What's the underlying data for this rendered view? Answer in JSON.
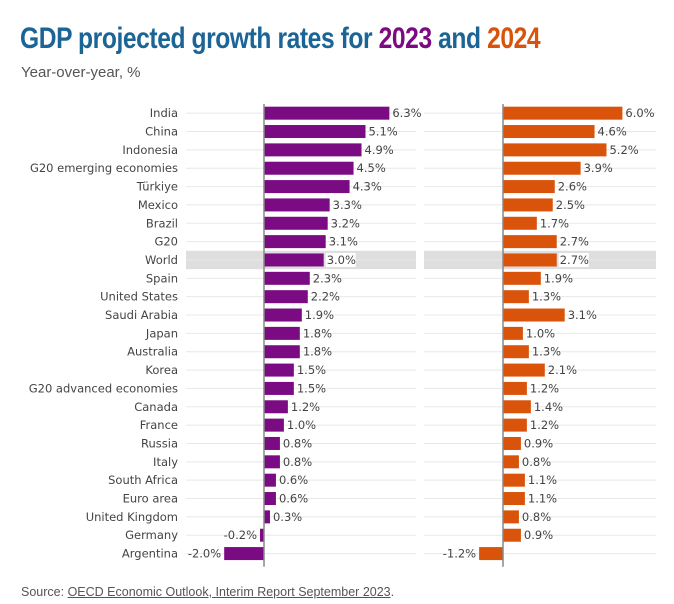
{
  "title": {
    "prefix": "GDP projected growth rates for ",
    "year1": "2023",
    "middle": " and ",
    "year2": "2024"
  },
  "subtitle": "Year-over-year, %",
  "source": {
    "prefix": "Source: ",
    "link_text": "OECD Economic Outlook, Interim Report September 2023",
    "suffix": "."
  },
  "colors": {
    "title": "#1a6496",
    "series_2023": "#7a0b82",
    "series_2024": "#d9530b",
    "highlight_row": "#dedede"
  },
  "chart_data": {
    "type": "bar",
    "orientation": "horizontal",
    "title": "GDP projected growth rates for 2023 and 2024",
    "subtitle": "Year-over-year, %",
    "xlabel": "",
    "ylabel": "",
    "unit": "%",
    "highlight_category": "World",
    "categories": [
      "India",
      "China",
      "Indonesia",
      "G20 emerging economies",
      "Türkiye",
      "Mexico",
      "Brazil",
      "G20",
      "World",
      "Spain",
      "United States",
      "Saudi Arabia",
      "Japan",
      "Australia",
      "Korea",
      "G20 advanced economies",
      "Canada",
      "France",
      "Russia",
      "Italy",
      "South Africa",
      "Euro area",
      "United Kingdom",
      "Germany",
      "Argentina"
    ],
    "series": [
      {
        "name": "2023",
        "values": [
          6.3,
          5.1,
          4.9,
          4.5,
          4.3,
          3.3,
          3.2,
          3.1,
          3.0,
          2.3,
          2.2,
          1.9,
          1.8,
          1.8,
          1.5,
          1.5,
          1.2,
          1.0,
          0.8,
          0.8,
          0.6,
          0.6,
          0.3,
          -0.2,
          -2.0
        ]
      },
      {
        "name": "2024",
        "values": [
          6.0,
          4.6,
          5.2,
          3.9,
          2.6,
          2.5,
          1.7,
          2.7,
          2.7,
          1.9,
          1.3,
          3.1,
          1.0,
          1.3,
          2.1,
          1.2,
          1.4,
          1.2,
          0.9,
          0.8,
          1.1,
          1.1,
          0.8,
          0.9,
          -1.2
        ]
      }
    ],
    "value_labels_2023": [
      "6.3%",
      "5.1%",
      "4.9%",
      "4.5%",
      "4.3%",
      "3.3%",
      "3.2%",
      "3.1%",
      "3.0%",
      "2.3%",
      "2.2%",
      "1.9%",
      "1.8%",
      "1.8%",
      "1.5%",
      "1.5%",
      "1.2%",
      "1.0%",
      "0.8%",
      "0.8%",
      "0.6%",
      "0.6%",
      "0.3%",
      "-0.2%",
      "-2.0%"
    ],
    "value_labels_2024": [
      "6.0%",
      "4.6%",
      "5.2%",
      "3.9%",
      "2.6%",
      "2.5%",
      "1.7%",
      "2.7%",
      "2.7%",
      "1.9%",
      "1.3%",
      "3.1%",
      "1.0%",
      "1.3%",
      "2.1%",
      "1.2%",
      "1.4%",
      "1.2%",
      "0.9%",
      "0.8%",
      "1.1%",
      "1.1%",
      "0.8%",
      "0.9%",
      "-1.2%"
    ],
    "grid": true,
    "legend": "in-title"
  }
}
